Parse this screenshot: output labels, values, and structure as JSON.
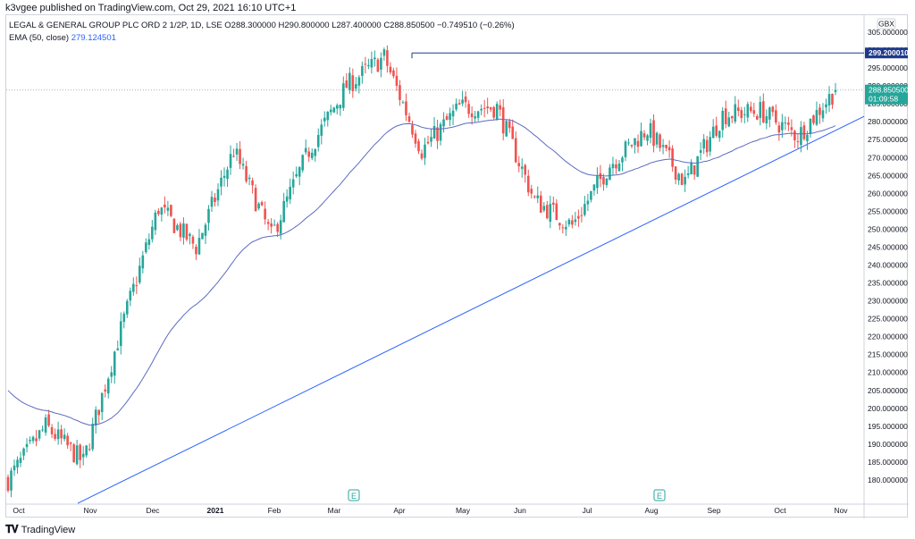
{
  "header": {
    "published": "k3vgee published on TradingView.com, Oct 29, 2021 16:10 UTC+1"
  },
  "legend": {
    "symbol": "LEGAL & GENERAL GROUP PLC ORD 2 1/2P, 1D, LSE",
    "ohlc": "O288.300000  H290.800000  L287.400000  C288.850500  −0.749510 (−0.26%)",
    "ema_label": "EMA (50, close)",
    "ema_value": "279.124501"
  },
  "footer": {
    "brand": "TradingView",
    "logo_icon": "tradingview-logo-icon"
  },
  "chart_data": {
    "type": "candlestick",
    "currency": "GBX",
    "ylim": [
      176,
      306
    ],
    "y_ticks": [
      180,
      185,
      190,
      195,
      200,
      205,
      210,
      215,
      220,
      225,
      230,
      235,
      240,
      245,
      250,
      255,
      260,
      265,
      270,
      275,
      280,
      285,
      290,
      295,
      300,
      305
    ],
    "x_ticks": [
      "Oct",
      "Nov",
      "Dec",
      "2021",
      "Feb",
      "Mar",
      "Apr",
      "May",
      "Jun",
      "Jul",
      "Aug",
      "Sep",
      "Oct",
      "Nov"
    ],
    "price_labels": {
      "resistance": "299.200010",
      "last": "288.850500",
      "countdown": "01:09:58"
    },
    "colors": {
      "up": "#26a69a",
      "down": "#ef5350",
      "ema": "#5c6bc0",
      "lines": "#2962ff"
    },
    "resistance_level": 299.2,
    "earnings_markers": [
      {
        "label": "E",
        "month": "Mar"
      },
      {
        "label": "E",
        "month": "Aug"
      }
    ],
    "trendline": {
      "start": {
        "month": "Oct 2020",
        "price": 176
      },
      "end": {
        "month": "Nov 2021",
        "price": 281.5
      }
    },
    "monthly_path": [
      {
        "month": "Oct",
        "price": 180
      },
      {
        "month": "Oct",
        "price": 195
      },
      {
        "month": "Nov",
        "price": 185
      },
      {
        "month": "Nov",
        "price": 222
      },
      {
        "month": "Dec",
        "price": 256
      },
      {
        "month": "Dec",
        "price": 245
      },
      {
        "month": "2021",
        "price": 272
      },
      {
        "month": "Feb",
        "price": 248
      },
      {
        "month": "Mar",
        "price": 272
      },
      {
        "month": "Mar",
        "price": 290
      },
      {
        "month": "Apr",
        "price": 298
      },
      {
        "month": "May",
        "price": 272
      },
      {
        "month": "May",
        "price": 284
      },
      {
        "month": "Jun",
        "price": 284
      },
      {
        "month": "Jul",
        "price": 258
      },
      {
        "month": "Jul",
        "price": 251
      },
      {
        "month": "Aug",
        "price": 268
      },
      {
        "month": "Aug",
        "price": 278
      },
      {
        "month": "Sep",
        "price": 263
      },
      {
        "month": "Sep",
        "price": 282
      },
      {
        "month": "Oct",
        "price": 283
      },
      {
        "month": "Oct",
        "price": 276
      },
      {
        "month": "Nov",
        "price": 288.85
      }
    ]
  }
}
